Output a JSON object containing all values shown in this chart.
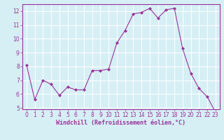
{
  "x": [
    0,
    1,
    2,
    3,
    4,
    5,
    6,
    7,
    8,
    9,
    10,
    11,
    12,
    13,
    14,
    15,
    16,
    17,
    18,
    19,
    20,
    21,
    22,
    23
  ],
  "y": [
    8.1,
    5.6,
    7.0,
    6.7,
    5.9,
    6.5,
    6.3,
    6.3,
    7.7,
    7.7,
    7.8,
    9.7,
    10.6,
    11.8,
    11.9,
    12.2,
    11.5,
    12.1,
    12.2,
    9.3,
    7.5,
    6.4,
    5.8,
    4.7
  ],
  "line_color": "#993399",
  "marker": "D",
  "marker_size": 2.0,
  "linewidth": 0.8,
  "xlabel": "Windchill (Refroidissement éolien,°C)",
  "xlabel_fontsize": 6.0,
  "bg_color": "#d6eff5",
  "grid_color": "#ffffff",
  "ylim": [
    4.9,
    12.5
  ],
  "xlim": [
    -0.5,
    23.5
  ],
  "yticks": [
    5,
    6,
    7,
    8,
    9,
    10,
    11,
    12
  ],
  "xticks": [
    0,
    1,
    2,
    3,
    4,
    5,
    6,
    7,
    8,
    9,
    10,
    11,
    12,
    13,
    14,
    15,
    16,
    17,
    18,
    19,
    20,
    21,
    22,
    23
  ],
  "tick_fontsize": 5.5,
  "tick_color": "#993399",
  "spine_color": "#993399"
}
